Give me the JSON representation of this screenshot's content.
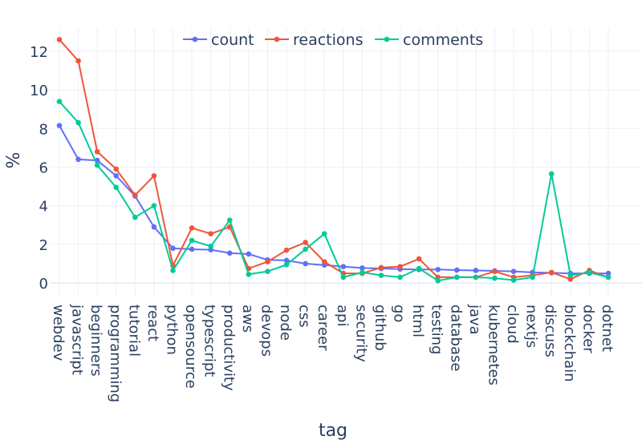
{
  "chart_data": {
    "type": "line",
    "xlabel": "tag",
    "ylabel": "%",
    "ylim": [
      -0.7,
      13.2
    ],
    "yticks": [
      0,
      2,
      4,
      6,
      8,
      10,
      12
    ],
    "grid": true,
    "legend_placement": "top-center",
    "categories": [
      "webdev",
      "javascript",
      "beginners",
      "programming",
      "tutorial",
      "react",
      "python",
      "opensource",
      "typescript",
      "productivity",
      "aws",
      "devops",
      "node",
      "css",
      "career",
      "api",
      "security",
      "github",
      "go",
      "html",
      "testing",
      "database",
      "java",
      "kubernetes",
      "cloud",
      "nextjs",
      "discuss",
      "blockchain",
      "docker",
      "dotnet"
    ],
    "series": [
      {
        "name": "count",
        "color": "#636efa",
        "values": [
          8.15,
          6.4,
          6.35,
          5.55,
          4.5,
          2.9,
          1.8,
          1.75,
          1.72,
          1.55,
          1.5,
          1.2,
          1.17,
          1.0,
          0.93,
          0.85,
          0.78,
          0.75,
          0.72,
          0.7,
          0.7,
          0.67,
          0.65,
          0.63,
          0.6,
          0.55,
          0.53,
          0.5,
          0.5,
          0.5
        ]
      },
      {
        "name": "reactions",
        "color": "#EF553B",
        "values": [
          12.6,
          11.5,
          6.8,
          5.9,
          4.55,
          5.55,
          0.9,
          2.85,
          2.55,
          2.9,
          0.75,
          1.1,
          1.7,
          2.1,
          1.1,
          0.5,
          0.5,
          0.8,
          0.85,
          1.25,
          0.3,
          0.3,
          0.3,
          0.6,
          0.3,
          0.4,
          0.55,
          0.2,
          0.65,
          0.3
        ]
      },
      {
        "name": "comments",
        "color": "#00cc96",
        "values": [
          9.4,
          8.3,
          6.1,
          4.95,
          3.4,
          4.0,
          0.65,
          2.2,
          1.9,
          3.25,
          0.45,
          0.6,
          0.95,
          1.75,
          2.55,
          0.3,
          0.55,
          0.4,
          0.3,
          0.75,
          0.12,
          0.3,
          0.3,
          0.25,
          0.15,
          0.3,
          5.65,
          0.4,
          0.55,
          0.3
        ]
      }
    ]
  }
}
